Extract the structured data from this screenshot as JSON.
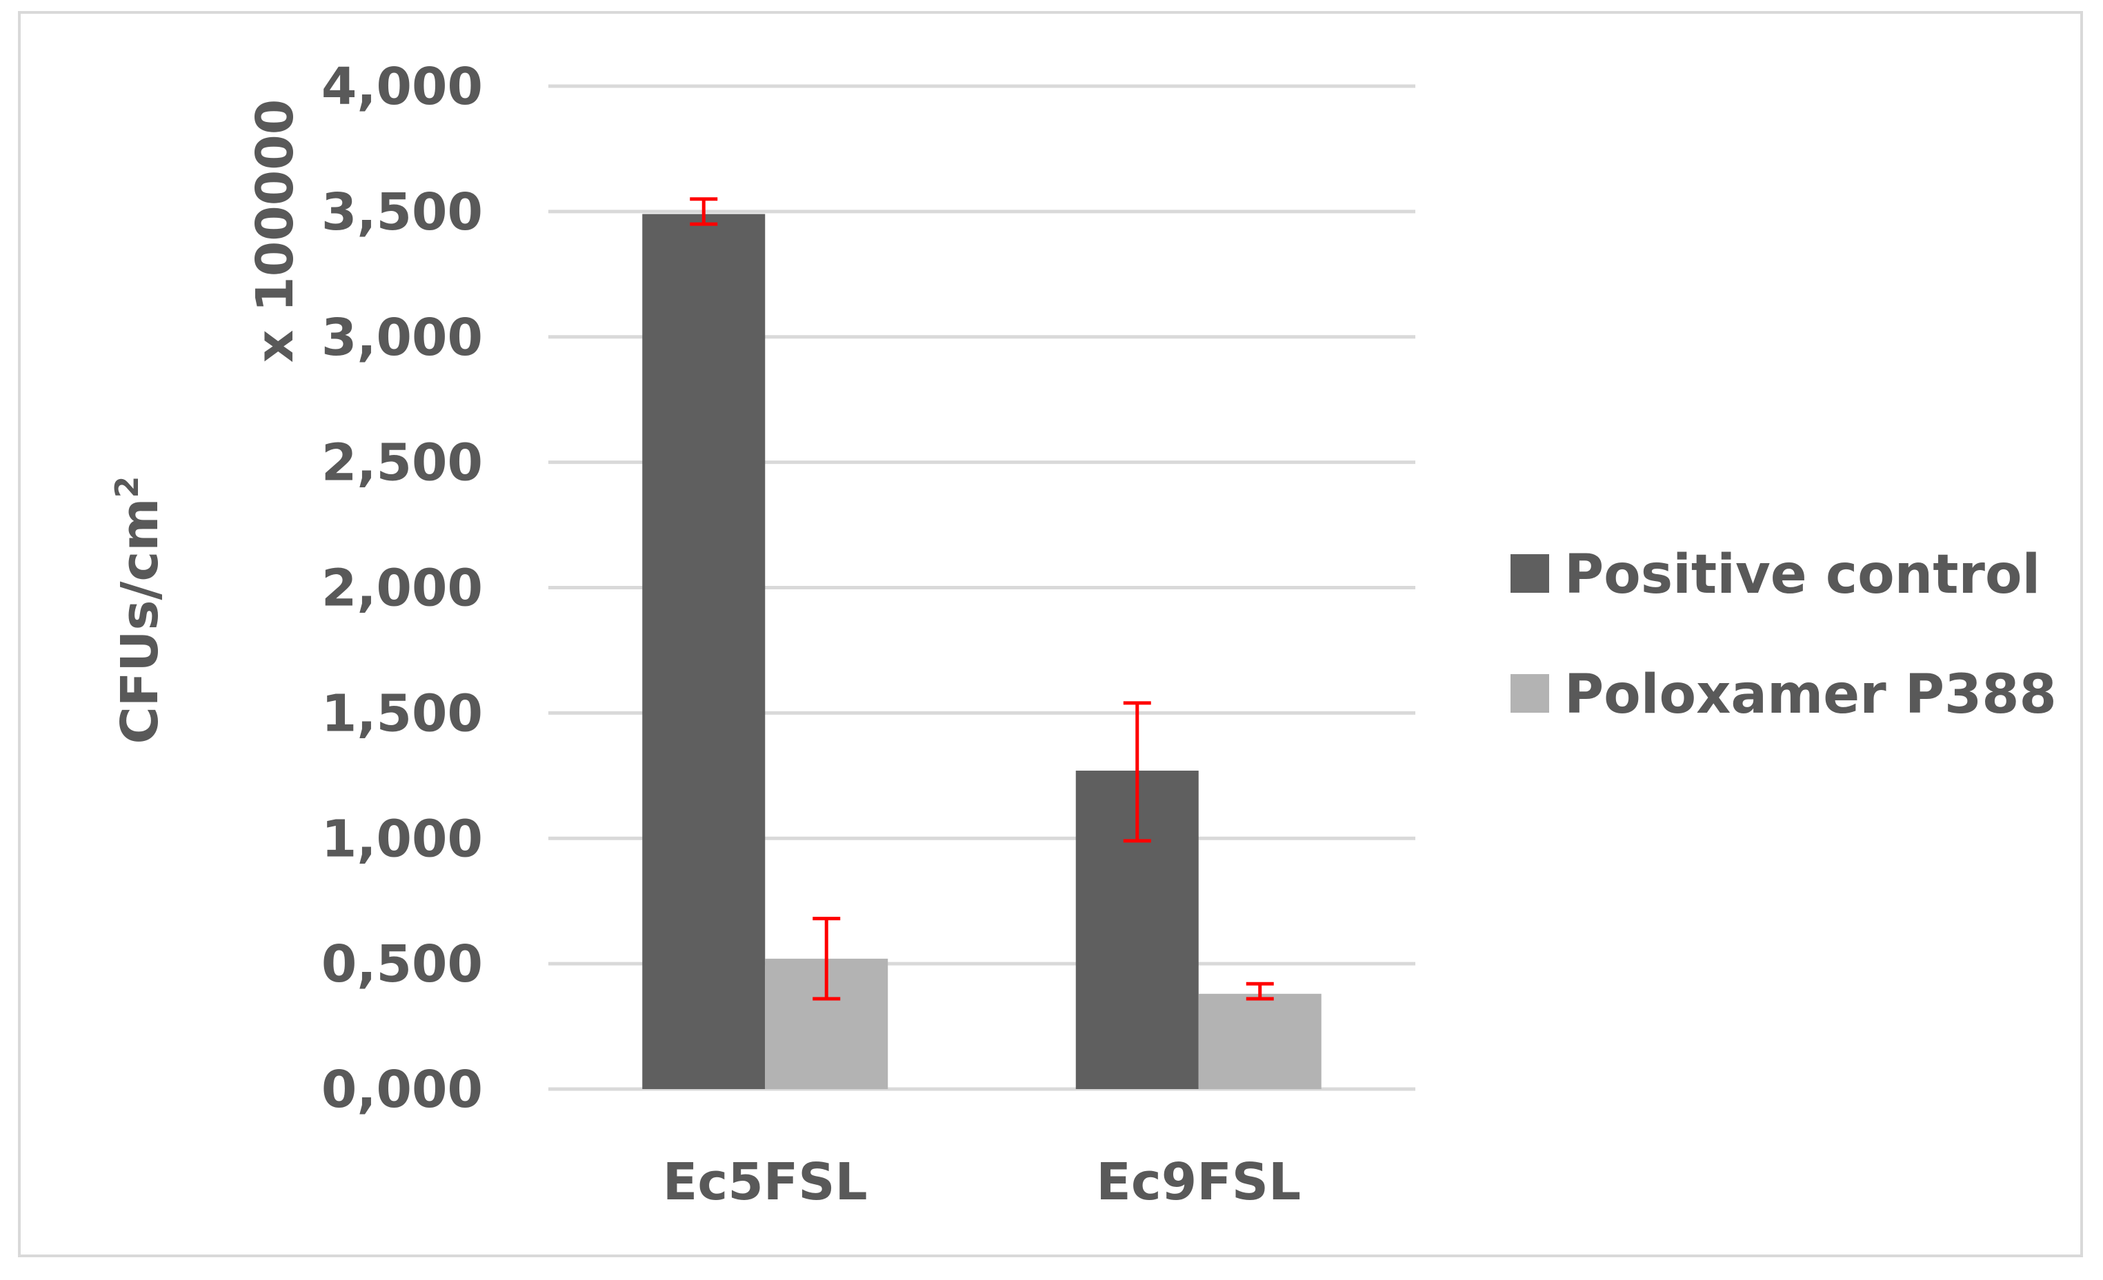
{
  "chart_data": {
    "type": "bar",
    "categories": [
      "Ec5FSL",
      "Ec9FSL"
    ],
    "series": [
      {
        "name": "Positive control",
        "color": "#5f5f5f",
        "values": [
          3.49,
          1.27
        ],
        "error_low": [
          3.45,
          0.99
        ],
        "error_high": [
          3.55,
          1.54
        ]
      },
      {
        "name": "Poloxamer P388",
        "color": "#b3b3b3",
        "values": [
          0.52,
          0.38
        ],
        "error_low": [
          0.36,
          0.36
        ],
        "error_high": [
          0.68,
          0.42
        ]
      }
    ],
    "ylim": [
      0,
      4
    ],
    "yticks": [
      0,
      0.5,
      1,
      1.5,
      2,
      2.5,
      3,
      3.5,
      4
    ],
    "ytick_labels": [
      "0,000",
      "0,500",
      "1,000",
      "1,500",
      "2,000",
      "2,500",
      "3,000",
      "3,500",
      "4,000"
    ],
    "ylabel_main": "CFUs/cm",
    "ylabel_sup": "2",
    "y_multiplier": "x 100000",
    "error_bar_color": "#ff0000",
    "gridlines": true,
    "legend_position": "right"
  }
}
